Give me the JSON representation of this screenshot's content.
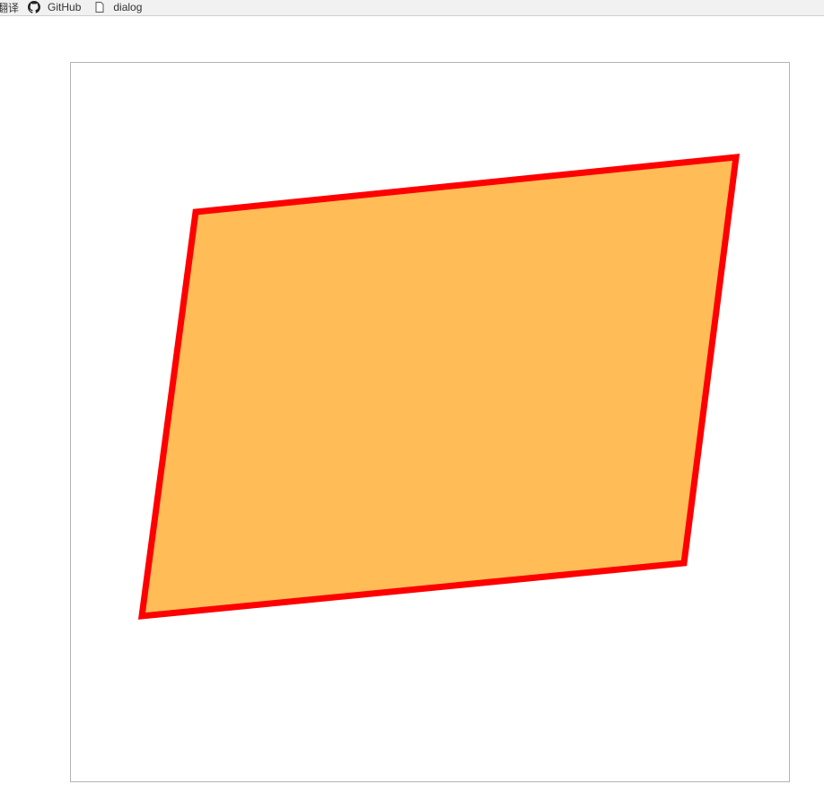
{
  "bookmarks": [
    {
      "label": "翻译",
      "icon": "translate-icon"
    },
    {
      "label": "GitHub",
      "icon": "github-icon"
    },
    {
      "label": "dialog",
      "icon": "page-icon"
    }
  ],
  "shape": {
    "type": "quadrilateral",
    "fill_color": "#ffbc57",
    "stroke_color": "#ff0000"
  },
  "colors": {
    "bookmarks_bar_bg": "#f1f1f1",
    "canvas_border": "#b3b3b3",
    "page_bg": "#ffffff"
  }
}
